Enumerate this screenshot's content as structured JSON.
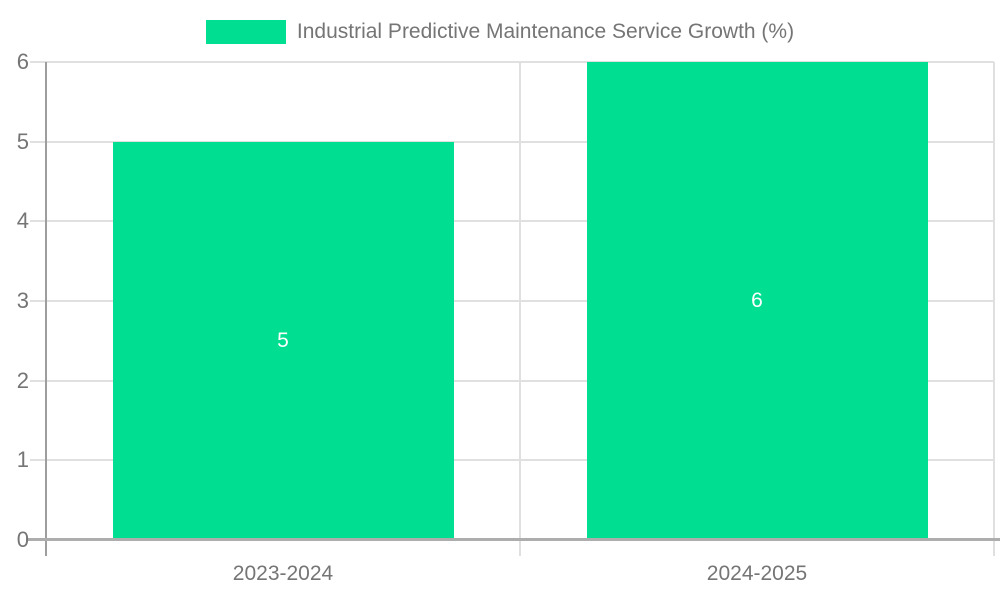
{
  "chart_data": {
    "type": "bar",
    "title": "Industrial Predictive Maintenance Service Growth (%)",
    "categories": [
      "2023-2024",
      "2024-2025"
    ],
    "series": [
      {
        "name": "Industrial Predictive Maintenance Service Growth (%)",
        "values": [
          5,
          6
        ]
      }
    ],
    "bar_labels": [
      "5",
      "6"
    ],
    "xlabel": "",
    "ylabel": "",
    "ylim": [
      0,
      6
    ],
    "yticks": [
      0,
      1,
      2,
      3,
      4,
      5,
      6
    ],
    "grid": true,
    "legend_position": "top-center",
    "colors": {
      "bar": "#00DE91",
      "bar_label": "#FFFFFF",
      "gridline": "#E0E0E0",
      "y_axis_line": "#9E9E9E",
      "x_axis_line": "#ADADAD",
      "tick_label": "#757575",
      "title_text": "#757575",
      "background": "#FFFFFF"
    }
  }
}
